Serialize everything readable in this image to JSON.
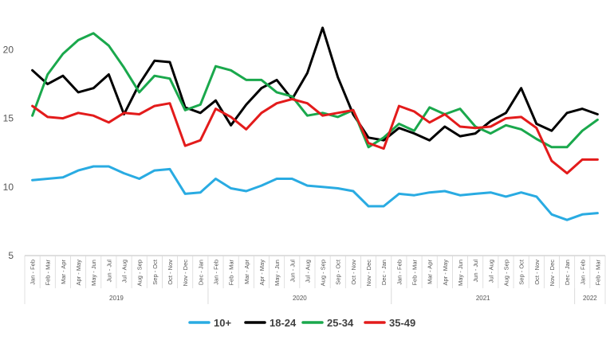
{
  "chart_data": {
    "type": "line",
    "title": "",
    "xlabel": "",
    "ylabel": "",
    "ylim": [
      5,
      22
    ],
    "yticks": [
      5,
      10,
      15,
      20
    ],
    "gridlines": false,
    "legend_position": "bottom",
    "categories": [
      "Jan - Feb",
      "Feb - Mar",
      "Mar - Apr",
      "Apr - May",
      "May - Jun",
      "Jun - Jul",
      "Jul - Aug",
      "Aug - Sep",
      "Sep - Oct",
      "Oct - Nov",
      "Nov - Dec",
      "Dec - Jan",
      "Jan - Feb",
      "Feb - Mar",
      "Mar - Apr",
      "Apr - May",
      "May - Jun",
      "Jun - Jul",
      "Jul - Aug",
      "Aug - Sep",
      "Sep - Oct",
      "Oct - Nov",
      "Nov - Dec",
      "Dec - Jan",
      "Jan - Feb",
      "Feb - Mar",
      "Mar - Apr",
      "Apr - May",
      "May - Jun",
      "Jun - Jul",
      "Jul - Aug",
      "Aug - Sep",
      "Sep - Oct",
      "Oct - Nov",
      "Nov - Dec",
      "Dec - Jan",
      "Jan - Feb",
      "Feb - Mar"
    ],
    "years": [
      {
        "label": "2019",
        "start": 0,
        "end": 11
      },
      {
        "label": "2020",
        "start": 12,
        "end": 23
      },
      {
        "label": "2021",
        "start": 24,
        "end": 35
      },
      {
        "label": "2022",
        "start": 36,
        "end": 37
      }
    ],
    "series": [
      {
        "name": "10+",
        "color": "#29abe2",
        "values": [
          10.5,
          10.6,
          10.7,
          11.2,
          11.5,
          11.5,
          11.0,
          10.6,
          11.2,
          11.3,
          9.5,
          9.6,
          10.6,
          9.9,
          9.7,
          10.1,
          10.6,
          10.6,
          10.1,
          10.0,
          9.9,
          9.7,
          8.6,
          8.6,
          9.5,
          9.4,
          9.6,
          9.7,
          9.4,
          9.5,
          9.6,
          9.3,
          9.6,
          9.3,
          8.0,
          7.6,
          8.0,
          8.1
        ]
      },
      {
        "name": "18-24",
        "color": "#000000",
        "values": [
          18.5,
          17.5,
          18.1,
          16.9,
          17.2,
          18.2,
          15.3,
          17.5,
          19.2,
          19.1,
          15.8,
          15.4,
          16.3,
          14.5,
          16.0,
          17.2,
          17.8,
          16.4,
          18.3,
          21.6,
          18.0,
          15.3,
          13.6,
          13.4,
          14.3,
          13.9,
          13.4,
          14.4,
          13.7,
          13.9,
          14.8,
          15.4,
          17.2,
          14.6,
          14.1,
          15.4,
          15.7,
          15.3
        ]
      },
      {
        "name": "25-34",
        "color": "#1aa84c",
        "values": [
          15.2,
          18.2,
          19.7,
          20.7,
          21.2,
          20.3,
          18.7,
          16.9,
          18.1,
          17.9,
          15.6,
          16.0,
          18.8,
          18.5,
          17.8,
          17.8,
          16.9,
          16.6,
          15.2,
          15.4,
          15.1,
          15.6,
          12.9,
          13.6,
          14.6,
          14.1,
          15.8,
          15.3,
          15.7,
          14.4,
          13.9,
          14.5,
          14.2,
          13.5,
          12.9,
          12.9,
          14.1,
          14.9
        ]
      },
      {
        "name": "35-49",
        "color": "#e31b1b",
        "values": [
          15.9,
          15.1,
          15.0,
          15.4,
          15.2,
          14.7,
          15.4,
          15.3,
          15.9,
          16.1,
          13.0,
          13.4,
          15.7,
          15.1,
          14.2,
          15.4,
          16.1,
          16.4,
          16.1,
          15.2,
          15.4,
          15.6,
          13.2,
          12.8,
          15.9,
          15.5,
          14.7,
          15.3,
          14.4,
          14.3,
          14.4,
          15.0,
          15.1,
          14.3,
          11.9,
          11.0,
          12.0,
          12.0
        ]
      }
    ]
  }
}
